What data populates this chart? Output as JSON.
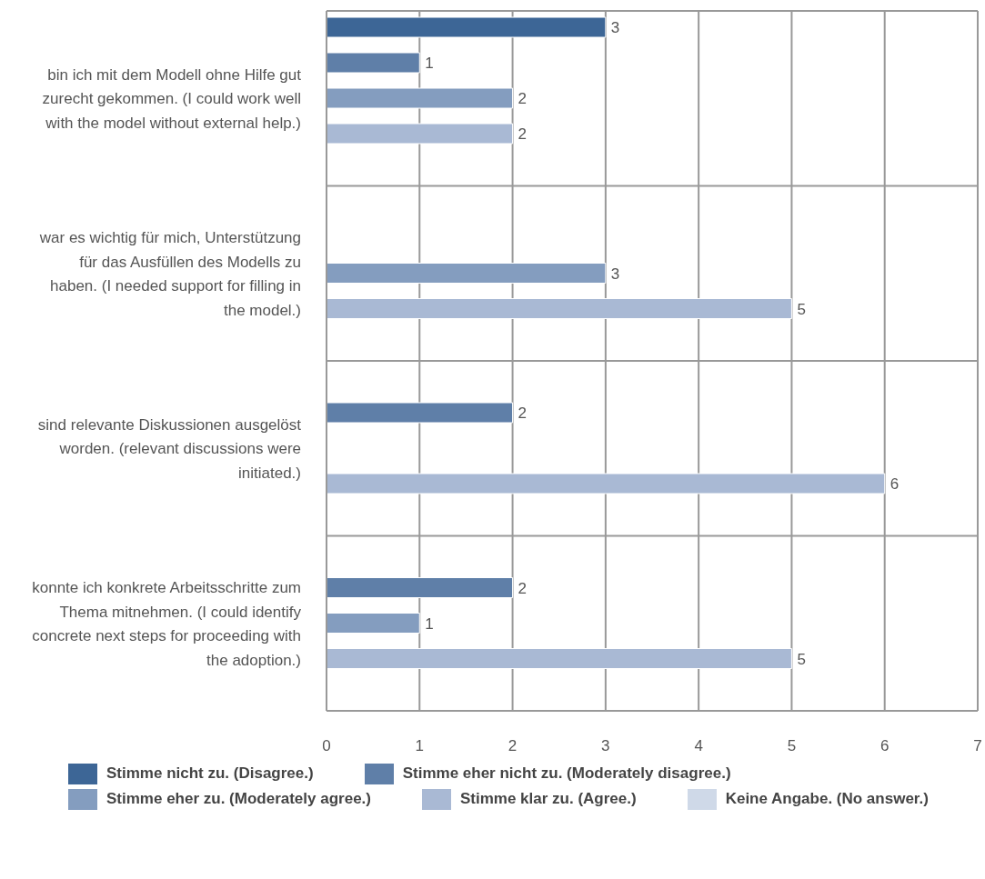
{
  "chart_data": {
    "type": "bar",
    "orientation": "horizontal",
    "categories": [
      "bin ich mit dem Modell ohne Hilfe gut zurecht gekommen. (I could work well with the model without external help.)",
      "war es wichtig für mich, Unterstützung für das Ausfüllen des Modells zu haben. (I needed support for filling in the model.)",
      "sind relevante Diskussionen ausgelöst worden. (relevant discussions were initiated.)",
      "konnte ich konkrete Arbeitsschritte zum Thema mitnehmen. (I could identify concrete next steps for proceeding with the adoption.)"
    ],
    "series": [
      {
        "name": "Stimme nicht zu. (Disagree.)",
        "color": "#3d6696",
        "values": [
          3,
          null,
          null,
          null
        ]
      },
      {
        "name": "Stimme eher nicht zu. (Moderately disagree.)",
        "color": "#5f7fa8",
        "values": [
          1,
          null,
          2,
          2
        ]
      },
      {
        "name": "Stimme eher zu. (Moderately agree.)",
        "color": "#849dbf",
        "values": [
          2,
          3,
          null,
          1
        ]
      },
      {
        "name": "Stimme klar zu. (Agree.)",
        "color": "#a9b9d4",
        "values": [
          2,
          5,
          6,
          5
        ]
      },
      {
        "name": "Keine Angabe. (No answer.)",
        "color": "#cfd9e8",
        "values": [
          null,
          null,
          null,
          null
        ]
      }
    ],
    "xlim": [
      0,
      7
    ],
    "xticks": [
      0,
      1,
      2,
      3,
      4,
      5,
      6,
      7
    ],
    "grid": true,
    "legend": "bottom",
    "data_labels": true
  }
}
